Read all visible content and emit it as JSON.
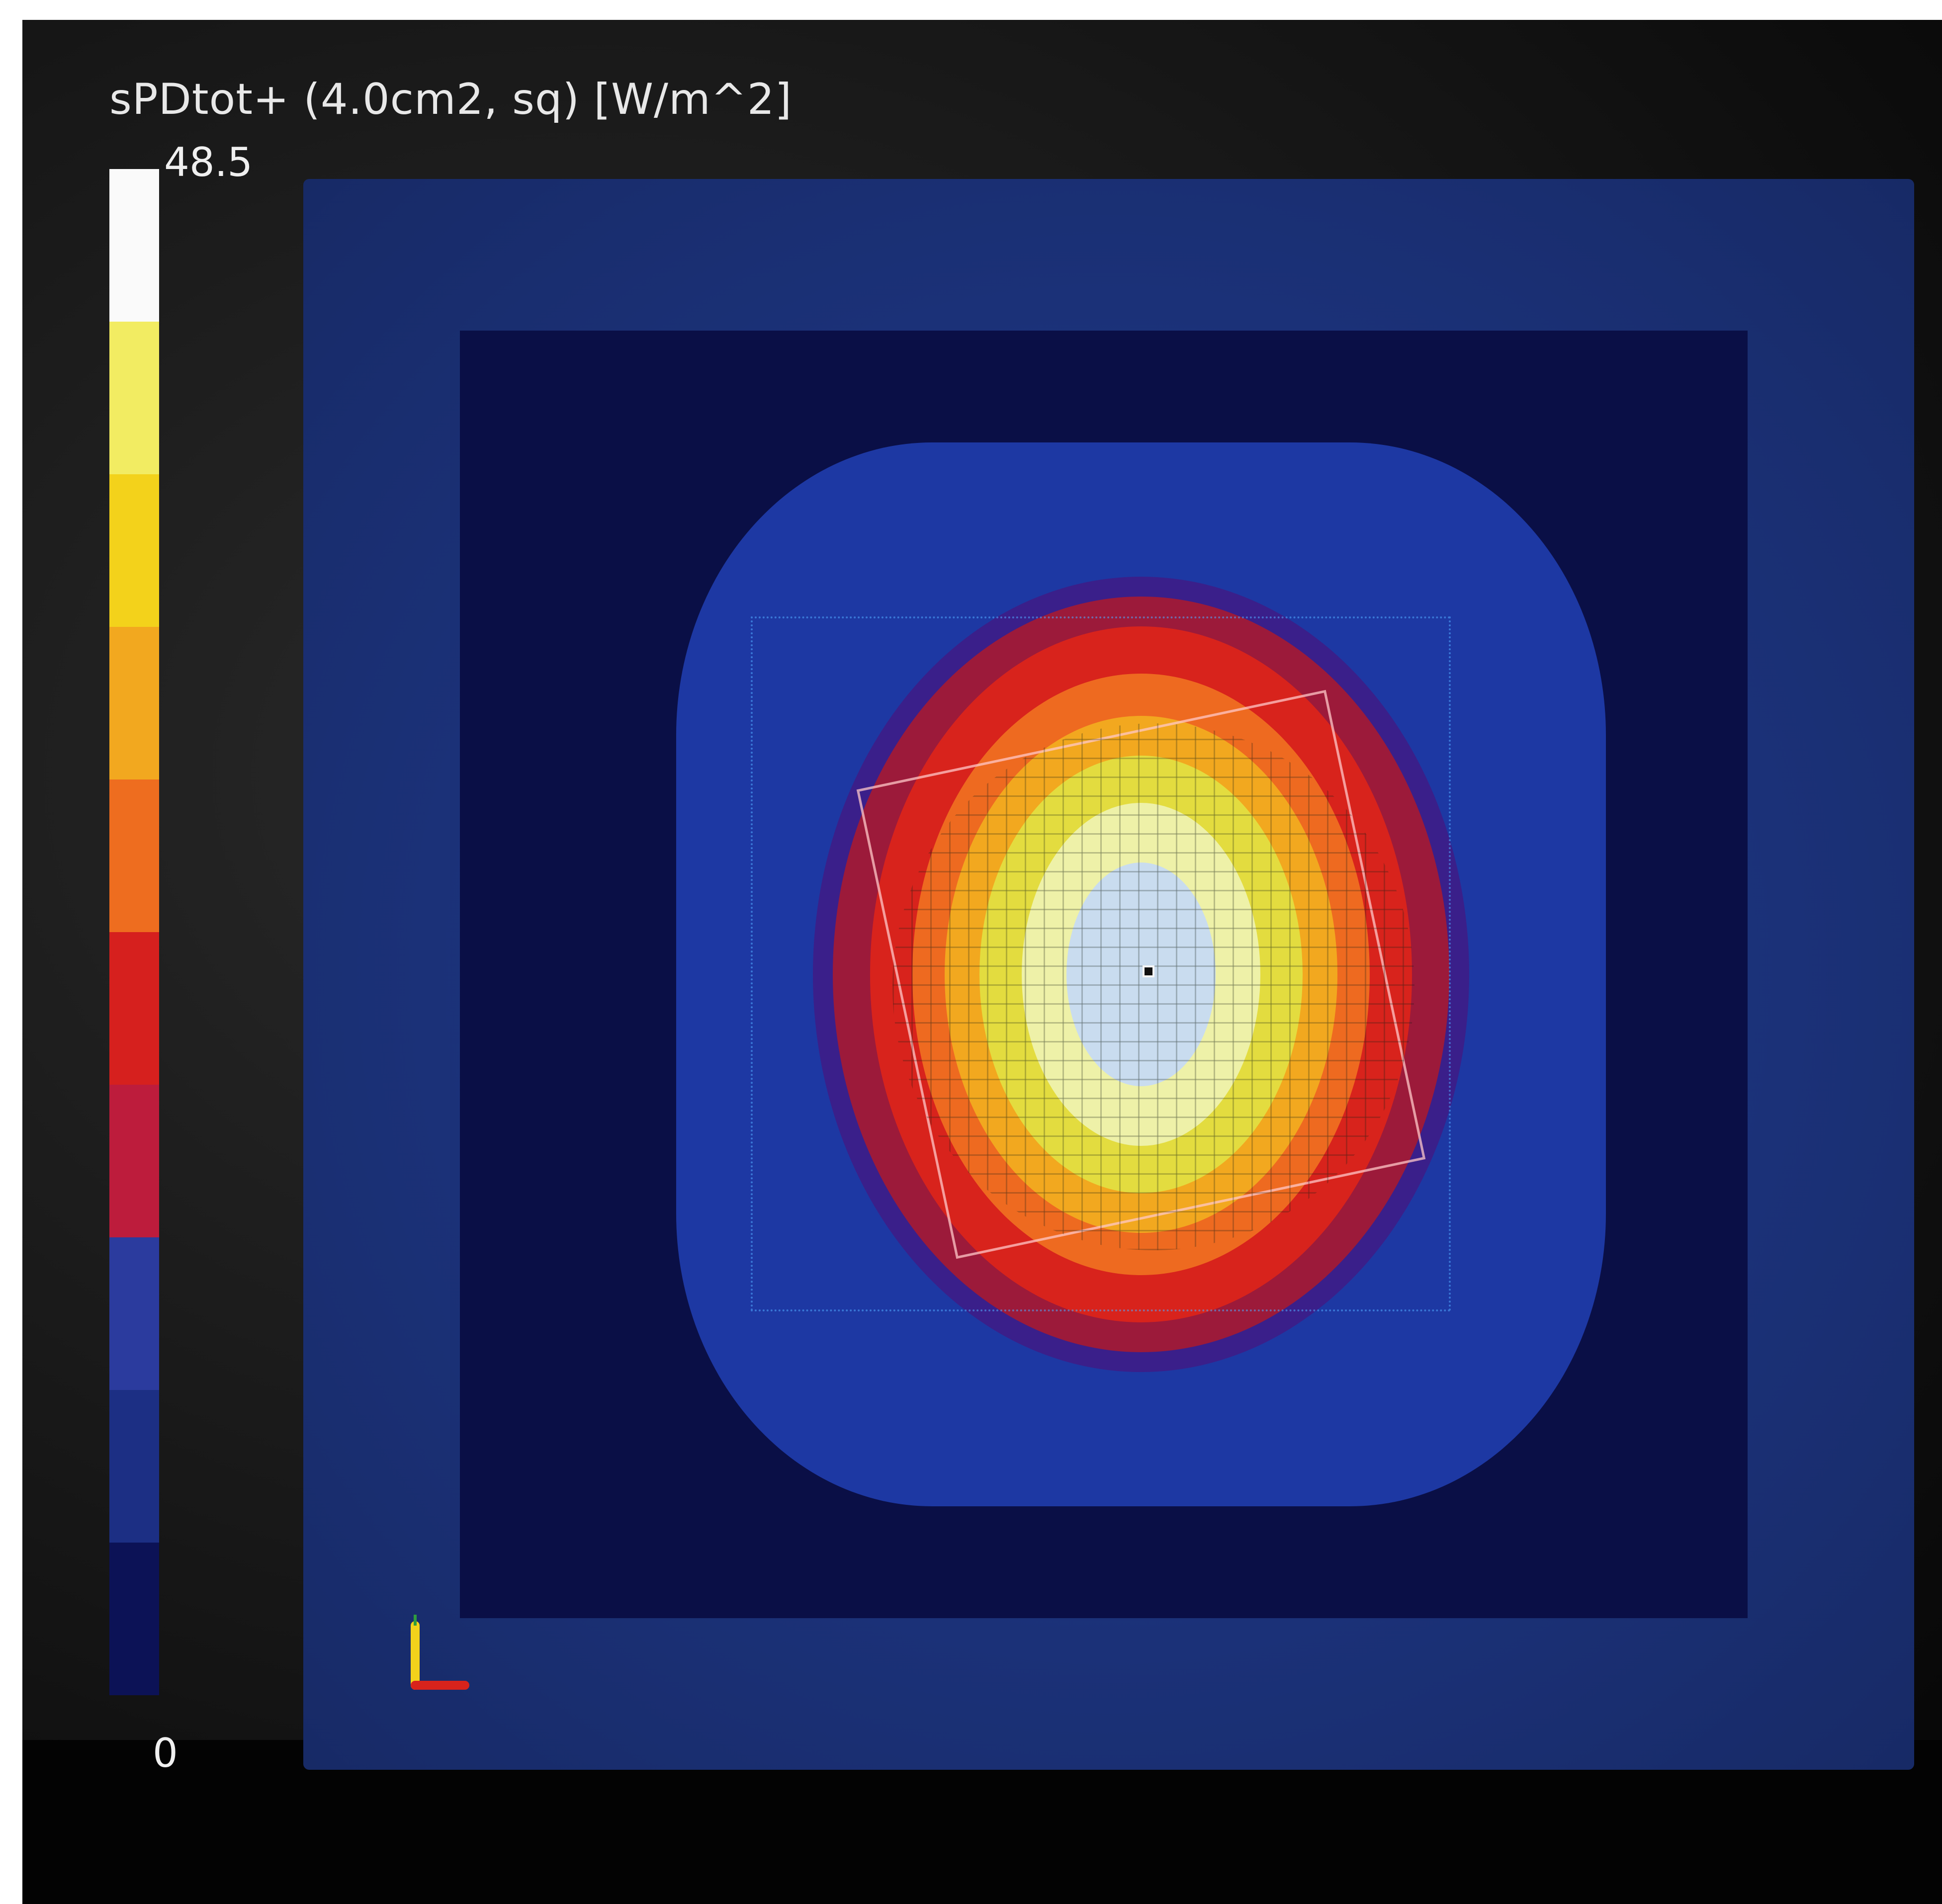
{
  "legend": {
    "title": "sPDtot+ (4.0cm2, sq) [W/m^2]",
    "max_label": "48.5",
    "min_label": "0",
    "colors": [
      "#fafafa",
      "#f2ec62",
      "#f3d21b",
      "#f2a81f",
      "#ee6d1f",
      "#d6201e",
      "#bd1c3c",
      "#2b3b9e",
      "#1c2f84",
      "#0c1256"
    ]
  },
  "field": {
    "contour_colors": [
      "#162a6e",
      "#1d38a3",
      "#3a1f8a",
      "#9c1a3a",
      "#d8231c",
      "#ee6a20",
      "#f2a81f",
      "#e3dc3f",
      "#eef1a8",
      "#c9dcef"
    ]
  },
  "triad": {
    "colors": [
      "#f2d21b",
      "#2e9c3e",
      "#d8231c"
    ]
  }
}
